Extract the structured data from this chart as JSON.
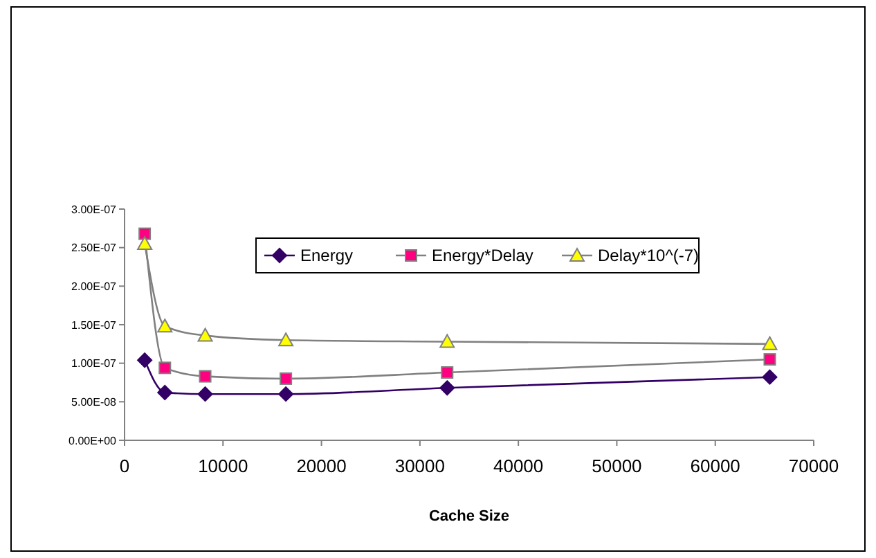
{
  "chart_data": {
    "type": "line",
    "xlabel": "Cache Size",
    "x": [
      2048,
      4096,
      8192,
      16384,
      32768,
      65536
    ],
    "xlim": [
      0,
      70000
    ],
    "xticks": [
      0,
      10000,
      20000,
      30000,
      40000,
      50000,
      60000,
      70000
    ],
    "ylim": [
      0,
      3e-07
    ],
    "yticks": [
      {
        "value": 0,
        "label": "0.00E+00"
      },
      {
        "value": 5e-08,
        "label": "5.00E-08"
      },
      {
        "value": 1e-07,
        "label": "1.00E-07"
      },
      {
        "value": 1.5e-07,
        "label": "1.50E-07"
      },
      {
        "value": 2e-07,
        "label": "2.00E-07"
      },
      {
        "value": 2.5e-07,
        "label": "2.50E-07"
      },
      {
        "value": 3e-07,
        "label": "3.00E-07"
      }
    ],
    "grid": false,
    "legend": "top right",
    "series": [
      {
        "name": "Energy",
        "color": "#330066",
        "marker": "diamond",
        "values": [
          1.04e-07,
          6.2e-08,
          6e-08,
          6e-08,
          6.8e-08,
          8.2e-08
        ]
      },
      {
        "name": "Energy*Delay",
        "color": "#ff0080",
        "marker": "square",
        "values": [
          2.68e-07,
          9.4e-08,
          8.3e-08,
          8e-08,
          8.8e-08,
          1.05e-07
        ]
      },
      {
        "name": "Delay*10^(-7)",
        "color": "#ffff00",
        "marker": "triangle",
        "values": [
          2.55e-07,
          1.48e-07,
          1.36e-07,
          1.3e-07,
          1.28e-07,
          1.25e-07
        ]
      }
    ]
  }
}
